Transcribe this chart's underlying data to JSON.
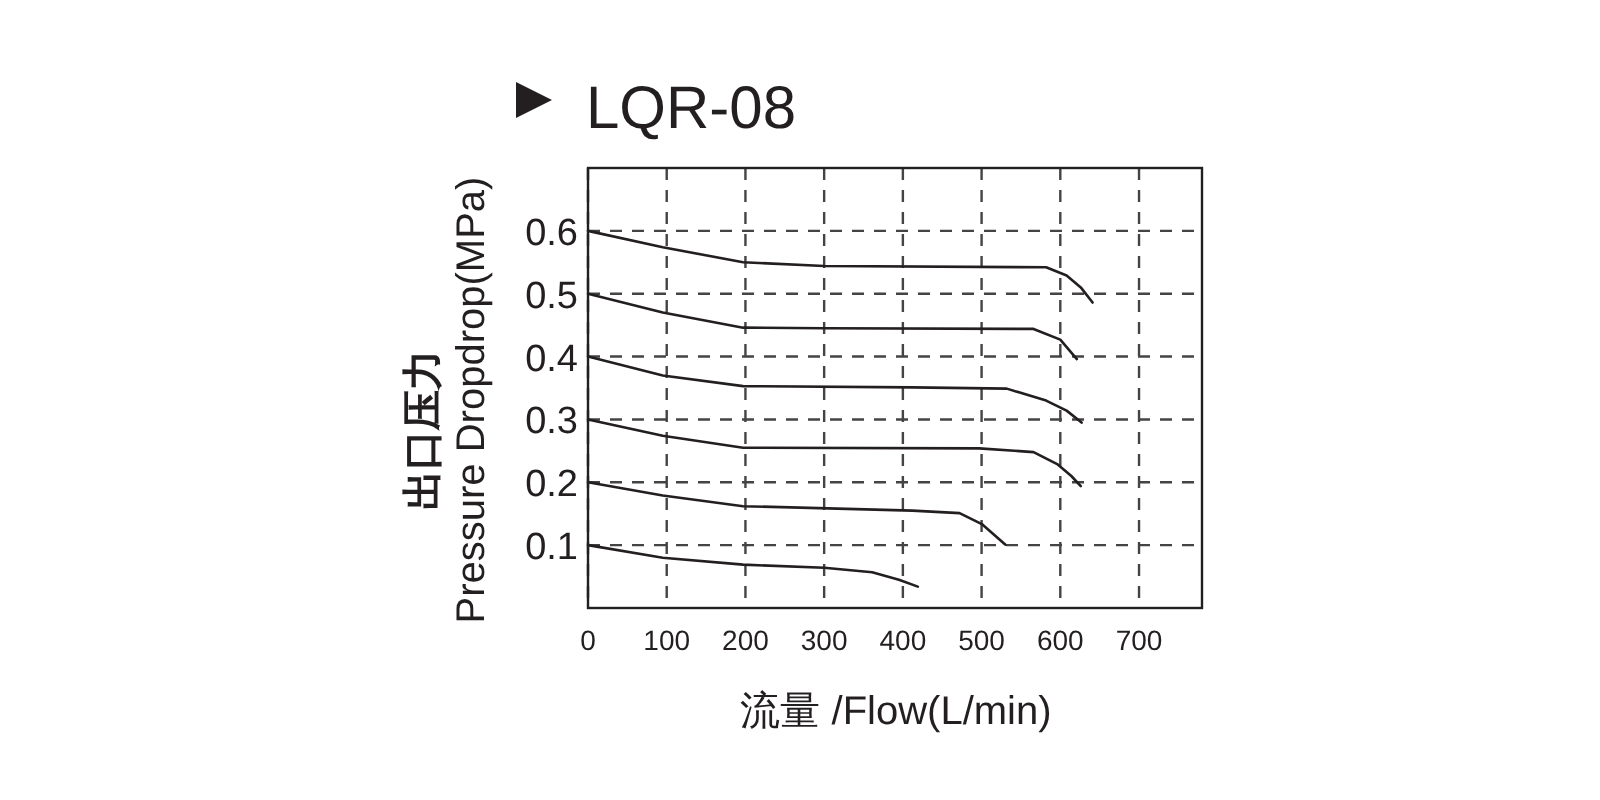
{
  "chart_data": {
    "type": "line",
    "title": "LQR-08",
    "xlabel": "流量 /Flow(L/min)",
    "ylabel": [
      "出口压力",
      "Pressure Dropdrop(MPa)"
    ],
    "xlim": [
      0,
      780
    ],
    "ylim": [
      0,
      0.7
    ],
    "xticks": [
      0,
      100,
      200,
      300,
      400,
      500,
      600,
      700
    ],
    "yticks": [
      0.1,
      0.2,
      0.3,
      0.4,
      0.5,
      0.6
    ],
    "grid": true,
    "marker": "none",
    "line_style": "solid",
    "series": [
      {
        "color": "#231f20",
        "x": [
          0,
          95,
          197,
          300,
          582,
          608,
          626,
          641
        ],
        "values": [
          0.6,
          0.574,
          0.55,
          0.544,
          0.542,
          0.529,
          0.51,
          0.486
        ]
      },
      {
        "color": "#231f20",
        "x": [
          0,
          95,
          197,
          300,
          566,
          600,
          621
        ],
        "values": [
          0.5,
          0.47,
          0.446,
          0.445,
          0.444,
          0.427,
          0.396
        ]
      },
      {
        "color": "#231f20",
        "x": [
          0,
          95,
          197,
          412,
          532,
          582,
          608,
          627
        ],
        "values": [
          0.4,
          0.37,
          0.353,
          0.351,
          0.349,
          0.33,
          0.314,
          0.295
        ]
      },
      {
        "color": "#231f20",
        "x": [
          0,
          95,
          197,
          497,
          566,
          596,
          614,
          626
        ],
        "values": [
          0.3,
          0.274,
          0.255,
          0.254,
          0.248,
          0.229,
          0.21,
          0.194
        ]
      },
      {
        "color": "#231f20",
        "x": [
          0,
          95,
          197,
          412,
          472,
          501,
          530
        ],
        "values": [
          0.2,
          0.179,
          0.162,
          0.155,
          0.151,
          0.133,
          0.101
        ]
      },
      {
        "color": "#231f20",
        "x": [
          0,
          95,
          197,
          300,
          361,
          395,
          419
        ],
        "values": [
          0.1,
          0.08,
          0.069,
          0.064,
          0.057,
          0.045,
          0.034
        ]
      }
    ]
  }
}
